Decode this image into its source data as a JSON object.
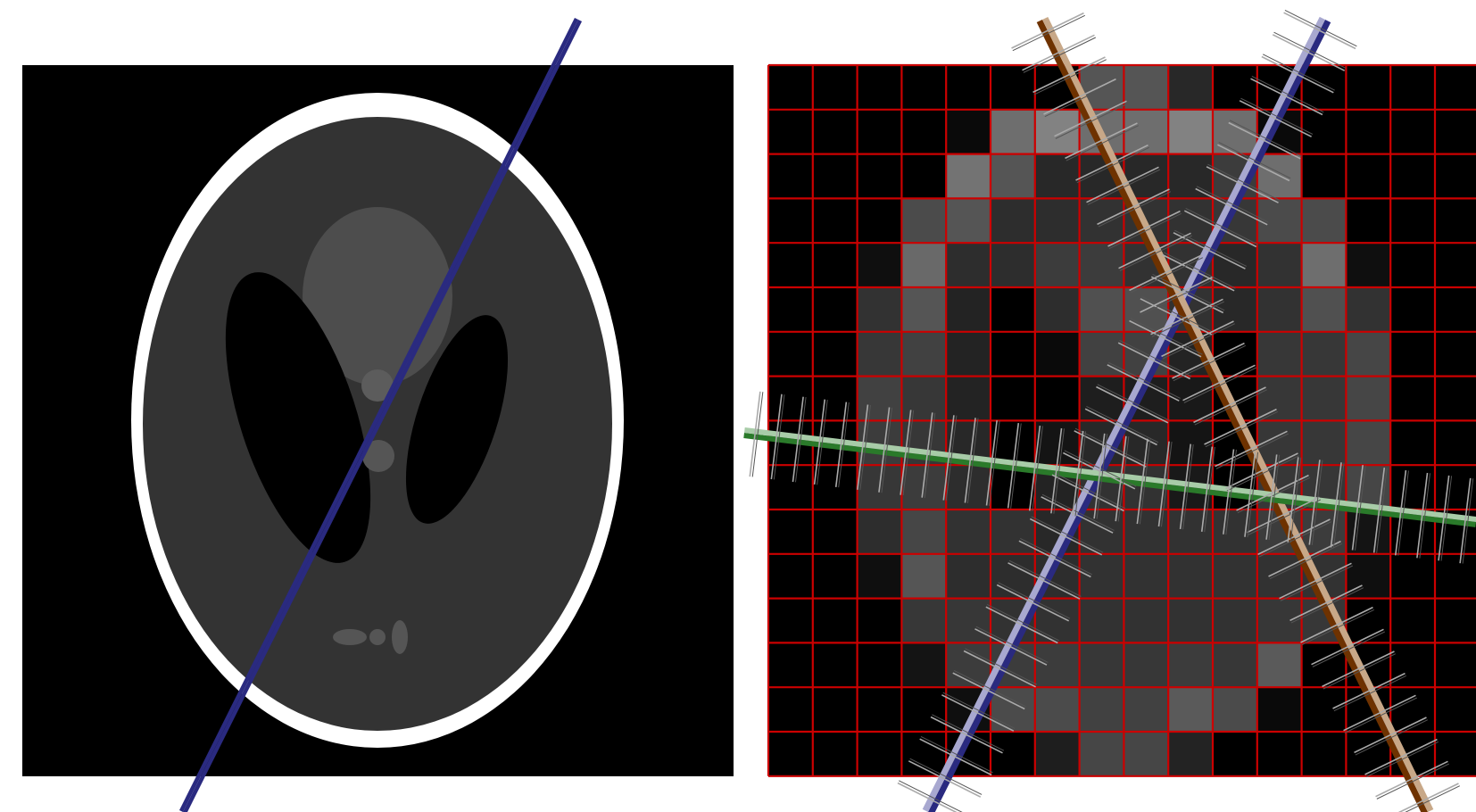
{
  "colors": {
    "background": "#ffffff",
    "phantom_background": "#000000",
    "skull": "#ffffff",
    "tissue": "#333333",
    "grid_lines": "#cc0000",
    "ray_blue": "#2a2a80",
    "ray_blue_light": "#a8a8d0",
    "ray_brown": "#6e3200",
    "ray_brown_light": "#c8a888",
    "ray_green": "#2a7a2a",
    "ray_green_light": "#a8cca8",
    "tick_marks": "#aaaaaa"
  },
  "pixel_grid": {
    "rows": 16,
    "cols": 16,
    "values": [
      [
        0,
        0,
        0,
        0,
        0,
        0,
        0,
        85,
        85,
        40,
        0,
        0,
        0,
        0,
        0,
        0
      ],
      [
        0,
        0,
        0,
        0,
        10,
        110,
        130,
        110,
        110,
        130,
        110,
        10,
        0,
        0,
        0,
        0
      ],
      [
        0,
        0,
        0,
        0,
        115,
        85,
        40,
        40,
        40,
        40,
        60,
        110,
        0,
        0,
        0,
        0
      ],
      [
        0,
        0,
        0,
        75,
        85,
        45,
        45,
        50,
        50,
        50,
        55,
        75,
        75,
        0,
        0,
        0
      ],
      [
        0,
        0,
        15,
        105,
        45,
        45,
        60,
        60,
        50,
        50,
        40,
        50,
        110,
        15,
        0,
        0
      ],
      [
        0,
        0,
        50,
        85,
        35,
        0,
        45,
        80,
        80,
        50,
        40,
        50,
        80,
        50,
        0,
        0
      ],
      [
        0,
        0,
        55,
        65,
        35,
        0,
        10,
        65,
        65,
        35,
        0,
        55,
        55,
        70,
        0,
        0
      ],
      [
        0,
        0,
        65,
        55,
        35,
        0,
        0,
        30,
        30,
        25,
        0,
        55,
        55,
        70,
        0,
        0
      ],
      [
        0,
        0,
        60,
        55,
        40,
        0,
        20,
        40,
        40,
        20,
        0,
        55,
        55,
        70,
        0,
        0
      ],
      [
        0,
        0,
        55,
        60,
        45,
        0,
        35,
        50,
        50,
        25,
        0,
        55,
        55,
        70,
        0,
        0
      ],
      [
        0,
        0,
        45,
        70,
        50,
        50,
        40,
        50,
        50,
        50,
        50,
        60,
        60,
        20,
        0,
        0
      ],
      [
        0,
        0,
        15,
        85,
        45,
        45,
        45,
        50,
        50,
        50,
        50,
        50,
        50,
        15,
        0,
        0
      ],
      [
        0,
        0,
        0,
        55,
        55,
        50,
        50,
        50,
        50,
        50,
        50,
        55,
        55,
        0,
        0,
        0
      ],
      [
        0,
        0,
        0,
        20,
        60,
        60,
        60,
        55,
        55,
        60,
        55,
        90,
        0,
        0,
        0,
        0
      ],
      [
        0,
        0,
        0,
        0,
        15,
        75,
        75,
        65,
        65,
        90,
        75,
        10,
        0,
        0,
        0,
        0
      ],
      [
        0,
        0,
        0,
        0,
        0,
        0,
        30,
        70,
        70,
        35,
        0,
        0,
        0,
        0,
        0,
        0
      ]
    ]
  },
  "rays": [
    {
      "name": "blue",
      "from": "bottom-left",
      "to": "top-right"
    },
    {
      "name": "brown",
      "from": "top-left",
      "to": "bottom-right"
    },
    {
      "name": "green",
      "from": "left",
      "to": "right"
    }
  ]
}
